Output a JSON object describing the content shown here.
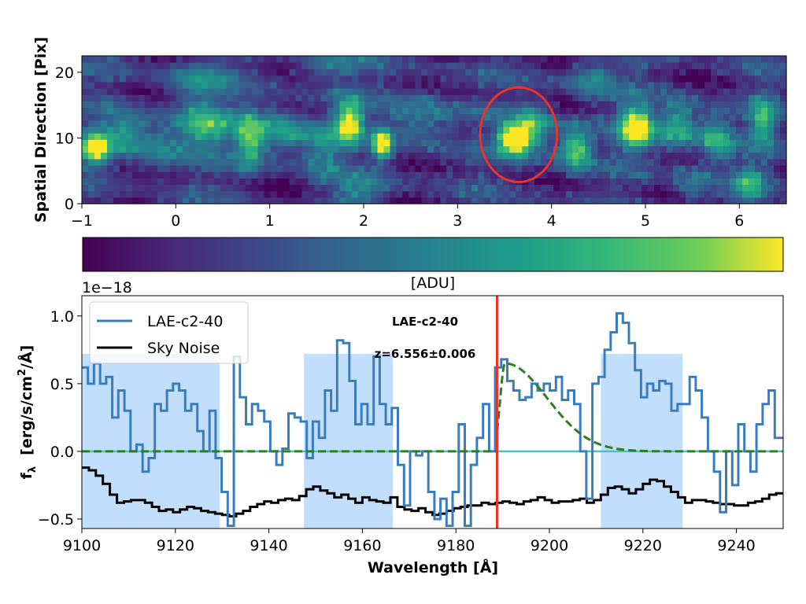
{
  "chart_data": [
    {
      "type": "heatmap",
      "ylabel": "Spatial Direction [Pix]",
      "xlim": [
        -1,
        6.5
      ],
      "ylim": [
        0,
        22.5
      ],
      "xticks": [
        "−1",
        "0",
        "1",
        "2",
        "3",
        "4",
        "5",
        "6"
      ],
      "yticks": [
        "0",
        "10",
        "20"
      ],
      "colorbar_label": "[ADU]",
      "colormap": "viridis",
      "blobs": [
        {
          "x": -0.85,
          "y": 8.5,
          "amp": 0.95,
          "sx": 0.1,
          "sy": 1.8
        },
        {
          "x": -0.55,
          "y": 11,
          "amp": 0.45,
          "sx": 0.15,
          "sy": 2
        },
        {
          "x": -0.2,
          "y": 9,
          "amp": 0.35,
          "sx": 0.2,
          "sy": 3
        },
        {
          "x": 0.3,
          "y": 12,
          "amp": 0.55,
          "sx": 0.2,
          "sy": 2.5
        },
        {
          "x": 0.8,
          "y": 10,
          "amp": 0.65,
          "sx": 0.12,
          "sy": 3
        },
        {
          "x": 1.15,
          "y": 11,
          "amp": 0.5,
          "sx": 0.15,
          "sy": 2.5
        },
        {
          "x": 1.55,
          "y": 9,
          "amp": 0.4,
          "sx": 0.15,
          "sy": 3
        },
        {
          "x": 1.85,
          "y": 12.5,
          "amp": 0.9,
          "sx": 0.1,
          "sy": 2.2
        },
        {
          "x": 2.2,
          "y": 9,
          "amp": 0.95,
          "sx": 0.07,
          "sy": 1.6
        },
        {
          "x": 2.6,
          "y": 13,
          "amp": 0.35,
          "sx": 0.25,
          "sy": 3
        },
        {
          "x": 3.6,
          "y": 9.8,
          "amp": 1.0,
          "sx": 0.12,
          "sy": 1.6
        },
        {
          "x": 3.8,
          "y": 11.5,
          "amp": 0.6,
          "sx": 0.15,
          "sy": 2.5
        },
        {
          "x": 4.25,
          "y": 8.5,
          "amp": 0.75,
          "sx": 0.12,
          "sy": 2.2
        },
        {
          "x": 4.9,
          "y": 11.5,
          "amp": 1.0,
          "sx": 0.12,
          "sy": 2.2
        },
        {
          "x": 5.35,
          "y": 12,
          "amp": 0.6,
          "sx": 0.15,
          "sy": 2.5
        },
        {
          "x": 5.75,
          "y": 10,
          "amp": 0.55,
          "sx": 0.12,
          "sy": 2.5
        },
        {
          "x": 6.25,
          "y": 12.5,
          "amp": 0.55,
          "sx": 0.1,
          "sy": 2.5
        },
        {
          "x": 6.1,
          "y": 3,
          "amp": 0.45,
          "sx": 0.12,
          "sy": 2
        },
        {
          "x": 2.0,
          "y": 2,
          "amp": 0.3,
          "sx": 0.2,
          "sy": 2
        },
        {
          "x": 0.2,
          "y": 19,
          "amp": 0.35,
          "sx": 0.25,
          "sy": 2
        },
        {
          "x": 4.4,
          "y": 19,
          "amp": 0.35,
          "sx": 0.2,
          "sy": 2
        },
        {
          "x": 1.6,
          "y": 21,
          "amp": 0.3,
          "sx": 0.25,
          "sy": 1.5
        },
        {
          "x": 5.5,
          "y": 3,
          "amp": 0.3,
          "sx": 0.15,
          "sy": 2
        }
      ],
      "circle": {
        "cx": 3.65,
        "cy": 10.5,
        "rx": 0.41,
        "ry": 7.2,
        "color": "#e8322a"
      }
    },
    {
      "type": "line",
      "xlabel": "Wavelength [Å]",
      "ylabel": "f",
      "ylabel_sub": "λ",
      "ylabel_unit": "[erg/s/cm",
      "ylabel_unit_sup": "2",
      "ylabel_unit_tail": "/Å]",
      "multiplier": "1e−18",
      "xlim": [
        9100,
        9250
      ],
      "ylim": [
        -0.57,
        1.15
      ],
      "xticks": [
        9100,
        9120,
        9140,
        9160,
        9180,
        9200,
        9220,
        9240
      ],
      "yticks": [
        -0.5,
        0.0,
        0.5,
        1.0
      ],
      "ytick_labels": [
        "−0.5",
        "0.0",
        "0.5",
        "1.0"
      ],
      "shaded_regions": [
        [
          9100,
          9129.5
        ],
        [
          9147.5,
          9166.5
        ],
        [
          9211,
          9228.5
        ]
      ],
      "shade_top": 0.72,
      "redshift_line": {
        "x": 9188.8,
        "color": "#e8322a"
      },
      "annotation_name": "LAE-c2-40",
      "annotation_z": "z=6.556±0.006",
      "legend": [
        "LAE-c2-40",
        "Sky Noise"
      ],
      "series": [
        {
          "name": "LAE-c2-40",
          "color": "#3a7dbf",
          "step_x": [
            9100,
            9101.3,
            9102.6,
            9103.9,
            9105.2,
            9106.5,
            9107.8,
            9109.1,
            9110.4,
            9111.7,
            9113,
            9114.3,
            9115.6,
            9116.9,
            9118.2,
            9119.5,
            9120.8,
            9122.1,
            9123.4,
            9124.7,
            9126,
            9127.3,
            9128.6,
            9129.9,
            9131.2,
            9132.5,
            9133.8,
            9135.1,
            9136.4,
            9137.7,
            9139,
            9140.3,
            9141.6,
            9142.9,
            9144.2,
            9145.5,
            9146.8,
            9148.1,
            9149.4,
            9150.7,
            9152,
            9153.3,
            9154.6,
            9155.9,
            9157.2,
            9158.5,
            9159.8,
            9161.1,
            9162.4,
            9163.7,
            9165,
            9166.3,
            9167.6,
            9168.9,
            9170.2,
            9171.5,
            9172.8,
            9174.1,
            9175.4,
            9176.7,
            9178,
            9179.3,
            9180.6,
            9181.9,
            9183.2,
            9184.5,
            9185.8,
            9187.1,
            9188.4,
            9189.7,
            9191,
            9192.3,
            9193.6,
            9194.9,
            9196.2,
            9197.5,
            9198.8,
            9200.1,
            9201.4,
            9202.7,
            9204,
            9205.3,
            9206.6,
            9207.9,
            9209.2,
            9210.5,
            9211.8,
            9213.1,
            9214.4,
            9215.7,
            9217,
            9218.3,
            9219.6,
            9220.9,
            9222.2,
            9223.5,
            9224.8,
            9226.1,
            9227.4,
            9228.7,
            9230,
            9231.3,
            9232.6,
            9233.9,
            9235.2,
            9236.5,
            9237.8,
            9239.1,
            9240.4,
            9241.7,
            9243,
            9244.3,
            9245.6,
            9246.9,
            9248.2
          ],
          "step_y": [
            0.62,
            0.5,
            0.65,
            0.5,
            0.55,
            0.25,
            0.45,
            0.3,
            0.0,
            0.05,
            -0.15,
            -0.05,
            0.35,
            0.3,
            0.45,
            0.5,
            0.45,
            0.3,
            0.35,
            0.15,
            0.0,
            0.3,
            -0.05,
            -0.3,
            -0.55,
            0.7,
            0.4,
            0.2,
            0.35,
            0.3,
            0.22,
            0.0,
            -0.1,
            0.02,
            0.28,
            0.25,
            0.22,
            -0.05,
            0.22,
            0.1,
            0.45,
            0.3,
            0.82,
            0.8,
            0.52,
            0.2,
            0.35,
            0.2,
            0.7,
            0.35,
            0.2,
            0.32,
            -0.1,
            -0.4,
            0.0,
            -0.03,
            0.0,
            -0.3,
            -0.5,
            -0.35,
            -0.55,
            -0.3,
            0.2,
            -0.55,
            -0.1,
            0.1,
            0.35,
            0.0,
            0.62,
            0.68,
            0.52,
            0.45,
            0.38,
            0.4,
            0.5,
            0.45,
            0.5,
            0.45,
            0.55,
            0.38,
            0.45,
            0.35,
            0.0,
            -0.35,
            0.5,
            0.55,
            0.75,
            0.88,
            1.02,
            0.95,
            0.8,
            0.6,
            0.4,
            0.5,
            0.45,
            0.52,
            0.5,
            0.3,
            0.35,
            0.35,
            0.55,
            0.45,
            0.25,
            0.0,
            -0.15,
            -0.45,
            0.0,
            -0.25,
            0.2,
            0.0,
            -0.15,
            0.2,
            0.35,
            0.45,
            0.1
          ]
        },
        {
          "name": "Sky Noise",
          "color": "#000000",
          "step_x": [
            9100,
            9101.5,
            9103,
            9104.5,
            9106,
            9107.5,
            9109,
            9110.5,
            9112,
            9113.5,
            9115,
            9116.5,
            9118,
            9119.5,
            9121,
            9122.5,
            9124,
            9125.5,
            9127,
            9128.5,
            9130,
            9131.5,
            9133,
            9134.5,
            9136,
            9137.5,
            9139,
            9140.5,
            9142,
            9143.5,
            9145,
            9146.5,
            9148,
            9149.5,
            9151,
            9152.5,
            9154,
            9155.5,
            9157,
            9158.5,
            9160,
            9161.5,
            9163,
            9164.5,
            9166,
            9167.5,
            9169,
            9170.5,
            9172,
            9173.5,
            9175,
            9176.5,
            9178,
            9179.5,
            9181,
            9182.5,
            9184,
            9185.5,
            9187,
            9188.5,
            9190,
            9191.5,
            9193,
            9194.5,
            9196,
            9197.5,
            9199,
            9200.5,
            9202,
            9203.5,
            9205,
            9206.5,
            9208,
            9209.5,
            9211,
            9212.5,
            9214,
            9215.5,
            9217,
            9218.5,
            9220,
            9221.5,
            9223,
            9224.5,
            9226,
            9227.5,
            9229,
            9230.5,
            9232,
            9233.5,
            9235,
            9236.5,
            9238,
            9239.5,
            9241,
            9242.5,
            9244,
            9245.5,
            9247,
            9248.5
          ],
          "step_y": [
            -0.12,
            -0.14,
            -0.18,
            -0.24,
            -0.32,
            -0.38,
            -0.37,
            -0.36,
            -0.36,
            -0.38,
            -0.41,
            -0.44,
            -0.43,
            -0.45,
            -0.43,
            -0.41,
            -0.42,
            -0.44,
            -0.45,
            -0.46,
            -0.47,
            -0.48,
            -0.46,
            -0.44,
            -0.41,
            -0.39,
            -0.37,
            -0.38,
            -0.36,
            -0.35,
            -0.36,
            -0.33,
            -0.28,
            -0.26,
            -0.29,
            -0.31,
            -0.34,
            -0.32,
            -0.35,
            -0.38,
            -0.34,
            -0.36,
            -0.37,
            -0.38,
            -0.34,
            -0.41,
            -0.43,
            -0.44,
            -0.42,
            -0.45,
            -0.47,
            -0.46,
            -0.44,
            -0.42,
            -0.41,
            -0.4,
            -0.4,
            -0.38,
            -0.39,
            -0.38,
            -0.37,
            -0.38,
            -0.39,
            -0.37,
            -0.36,
            -0.34,
            -0.36,
            -0.38,
            -0.37,
            -0.37,
            -0.36,
            -0.35,
            -0.38,
            -0.36,
            -0.32,
            -0.27,
            -0.26,
            -0.28,
            -0.31,
            -0.28,
            -0.24,
            -0.21,
            -0.22,
            -0.26,
            -0.3,
            -0.34,
            -0.38,
            -0.36,
            -0.36,
            -0.37,
            -0.38,
            -0.39,
            -0.39,
            -0.4,
            -0.4,
            -0.38,
            -0.37,
            -0.35,
            -0.32,
            -0.31
          ]
        },
        {
          "name": "Gaussian fit",
          "color": "#2e7d1f",
          "dashed": true,
          "x_start": 9188.8,
          "peak_x": 9190.5,
          "peak_y": 0.65,
          "rise_sigma": 1.0,
          "decay_sigma": 9.0
        },
        {
          "name": "Zero line",
          "color": "#4fc0c0",
          "y": 0.0
        }
      ]
    }
  ]
}
